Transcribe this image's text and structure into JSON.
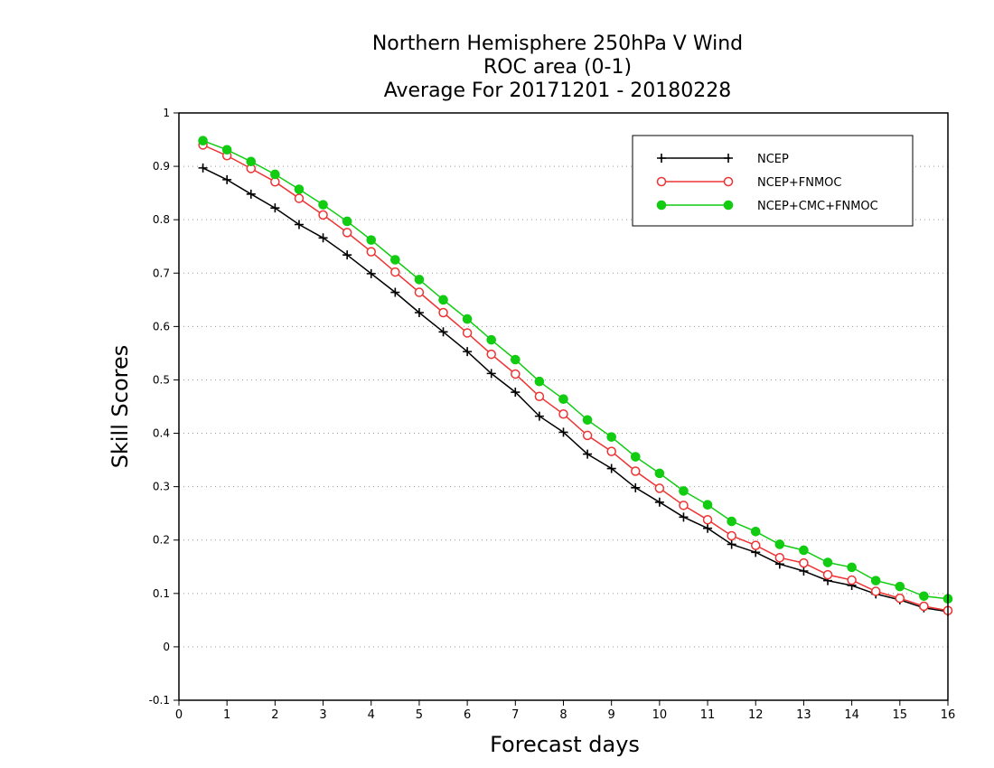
{
  "chart_data": {
    "type": "line",
    "title_lines": [
      "Northern Hemisphere 250hPa V Wind",
      "ROC area (0-1)",
      "Average For 20171201 - 20180228"
    ],
    "xlabel": "Forecast days",
    "ylabel": "Skill Scores",
    "xlim": [
      0,
      16
    ],
    "ylim": [
      -0.1,
      1
    ],
    "x_ticks": [
      "0",
      "1",
      "2",
      "3",
      "4",
      "5",
      "6",
      "7",
      "8",
      "9",
      "10",
      "11",
      "12",
      "13",
      "14",
      "15",
      "16"
    ],
    "y_ticks": [
      "-0.1",
      "0",
      "0.1",
      "0.2",
      "0.3",
      "0.4",
      "0.5",
      "0.6",
      "0.7",
      "0.8",
      "0.9",
      "1"
    ],
    "grid": "horizontal dotted",
    "legend_position": "top-right",
    "x": [
      0.5,
      1,
      1.5,
      2,
      2.5,
      3,
      3.5,
      4,
      4.5,
      5,
      5.5,
      6,
      6.5,
      7,
      7.5,
      8,
      8.5,
      9,
      9.5,
      10,
      10.5,
      11,
      11.5,
      12,
      12.5,
      13,
      13.5,
      14,
      14.5,
      15,
      15.5,
      16
    ],
    "series": [
      {
        "name": "NCEP",
        "color": "#000000",
        "marker": "plus",
        "values": [
          0.897,
          0.875,
          0.848,
          0.822,
          0.791,
          0.766,
          0.734,
          0.699,
          0.664,
          0.626,
          0.59,
          0.553,
          0.512,
          0.477,
          0.432,
          0.402,
          0.361,
          0.334,
          0.298,
          0.271,
          0.243,
          0.222,
          0.192,
          0.177,
          0.155,
          0.142,
          0.124,
          0.115,
          0.099,
          0.088,
          0.073,
          0.066
        ]
      },
      {
        "name": "NCEP+FNMOC",
        "color": "#ee3333",
        "marker": "open-circle",
        "values": [
          0.94,
          0.92,
          0.896,
          0.871,
          0.84,
          0.809,
          0.776,
          0.74,
          0.702,
          0.664,
          0.626,
          0.588,
          0.548,
          0.511,
          0.469,
          0.436,
          0.396,
          0.366,
          0.329,
          0.297,
          0.265,
          0.238,
          0.208,
          0.19,
          0.167,
          0.157,
          0.135,
          0.125,
          0.104,
          0.091,
          0.076,
          0.068
        ]
      },
      {
        "name": "NCEP+CMC+FNMOC",
        "color": "#11cc11",
        "marker": "filled-circle",
        "values": [
          0.948,
          0.931,
          0.909,
          0.885,
          0.857,
          0.828,
          0.797,
          0.762,
          0.725,
          0.688,
          0.65,
          0.614,
          0.575,
          0.538,
          0.497,
          0.464,
          0.425,
          0.393,
          0.356,
          0.325,
          0.292,
          0.266,
          0.235,
          0.216,
          0.192,
          0.181,
          0.158,
          0.149,
          0.124,
          0.113,
          0.095,
          0.09
        ]
      }
    ]
  }
}
